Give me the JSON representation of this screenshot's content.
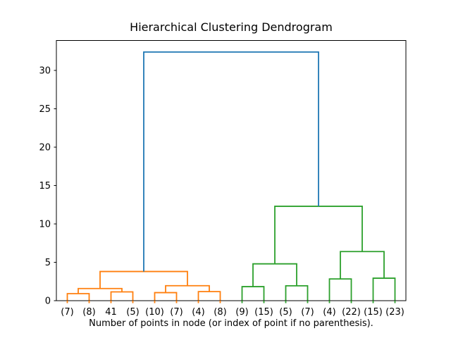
{
  "chart_data": {
    "type": "dendrogram",
    "title": "Hierarchical Clustering Dendrogram",
    "xlabel": "Number of points in node (or index of point if no parenthesis).",
    "ylabel": "",
    "xlim": [
      0,
      160
    ],
    "ylim": [
      0,
      33.9
    ],
    "yticks": [
      0,
      5,
      10,
      15,
      20,
      25,
      30
    ],
    "grid": false,
    "legend": null,
    "colors": {
      "above_threshold_link": "#1f77b4",
      "cluster1_link": "#ff7f0e",
      "cluster2_link": "#2ca02c",
      "axes": "#000000",
      "text": "#000000",
      "background": "#ffffff"
    },
    "leaves": [
      {
        "label": "(7)",
        "x": 5,
        "color": "#ff7f0e"
      },
      {
        "label": "(8)",
        "x": 15,
        "color": "#ff7f0e"
      },
      {
        "label": "41",
        "x": 25,
        "color": "#ff7f0e"
      },
      {
        "label": "(5)",
        "x": 35,
        "color": "#ff7f0e"
      },
      {
        "label": "(10)",
        "x": 45,
        "color": "#ff7f0e"
      },
      {
        "label": "(7)",
        "x": 55,
        "color": "#ff7f0e"
      },
      {
        "label": "(4)",
        "x": 65,
        "color": "#ff7f0e"
      },
      {
        "label": "(8)",
        "x": 75,
        "color": "#ff7f0e"
      },
      {
        "label": "(9)",
        "x": 85,
        "color": "#2ca02c"
      },
      {
        "label": "(15)",
        "x": 95,
        "color": "#2ca02c"
      },
      {
        "label": "(5)",
        "x": 105,
        "color": "#2ca02c"
      },
      {
        "label": "(7)",
        "x": 115,
        "color": "#2ca02c"
      },
      {
        "label": "(4)",
        "x": 125,
        "color": "#2ca02c"
      },
      {
        "label": "(22)",
        "x": 135,
        "color": "#2ca02c"
      },
      {
        "label": "(15)",
        "x": 145,
        "color": "#2ca02c"
      },
      {
        "label": "(23)",
        "x": 155,
        "color": "#2ca02c"
      }
    ],
    "links": [
      {
        "x1": 5,
        "h1": 0,
        "x2": 15,
        "h2": 0,
        "h": 0.92,
        "color": "#ff7f0e"
      },
      {
        "x1": 25,
        "h1": 0,
        "x2": 35,
        "h2": 0,
        "h": 1.15,
        "color": "#ff7f0e"
      },
      {
        "x1": 10,
        "h1": 0.92,
        "x2": 30,
        "h2": 1.15,
        "h": 1.58,
        "color": "#ff7f0e"
      },
      {
        "x1": 45,
        "h1": 0,
        "x2": 55,
        "h2": 0,
        "h": 1.05,
        "color": "#ff7f0e"
      },
      {
        "x1": 65,
        "h1": 0,
        "x2": 75,
        "h2": 0,
        "h": 1.18,
        "color": "#ff7f0e"
      },
      {
        "x1": 50,
        "h1": 1.05,
        "x2": 70,
        "h2": 1.18,
        "h": 1.95,
        "color": "#ff7f0e"
      },
      {
        "x1": 20,
        "h1": 1.58,
        "x2": 60,
        "h2": 1.95,
        "h": 3.8,
        "color": "#ff7f0e"
      },
      {
        "x1": 85,
        "h1": 0,
        "x2": 95,
        "h2": 0,
        "h": 1.83,
        "color": "#2ca02c"
      },
      {
        "x1": 105,
        "h1": 0,
        "x2": 115,
        "h2": 0,
        "h": 1.94,
        "color": "#2ca02c"
      },
      {
        "x1": 90,
        "h1": 1.83,
        "x2": 110,
        "h2": 1.94,
        "h": 4.8,
        "color": "#2ca02c"
      },
      {
        "x1": 125,
        "h1": 0,
        "x2": 135,
        "h2": 0,
        "h": 2.83,
        "color": "#2ca02c"
      },
      {
        "x1": 145,
        "h1": 0,
        "x2": 155,
        "h2": 0,
        "h": 2.93,
        "color": "#2ca02c"
      },
      {
        "x1": 130,
        "h1": 2.83,
        "x2": 150,
        "h2": 2.93,
        "h": 6.4,
        "color": "#2ca02c"
      },
      {
        "x1": 100,
        "h1": 4.8,
        "x2": 140,
        "h2": 6.4,
        "h": 12.3,
        "color": "#2ca02c"
      },
      {
        "x1": 40,
        "h1": 3.8,
        "x2": 120,
        "h2": 12.3,
        "h": 32.4,
        "color": "#1f77b4"
      }
    ]
  }
}
